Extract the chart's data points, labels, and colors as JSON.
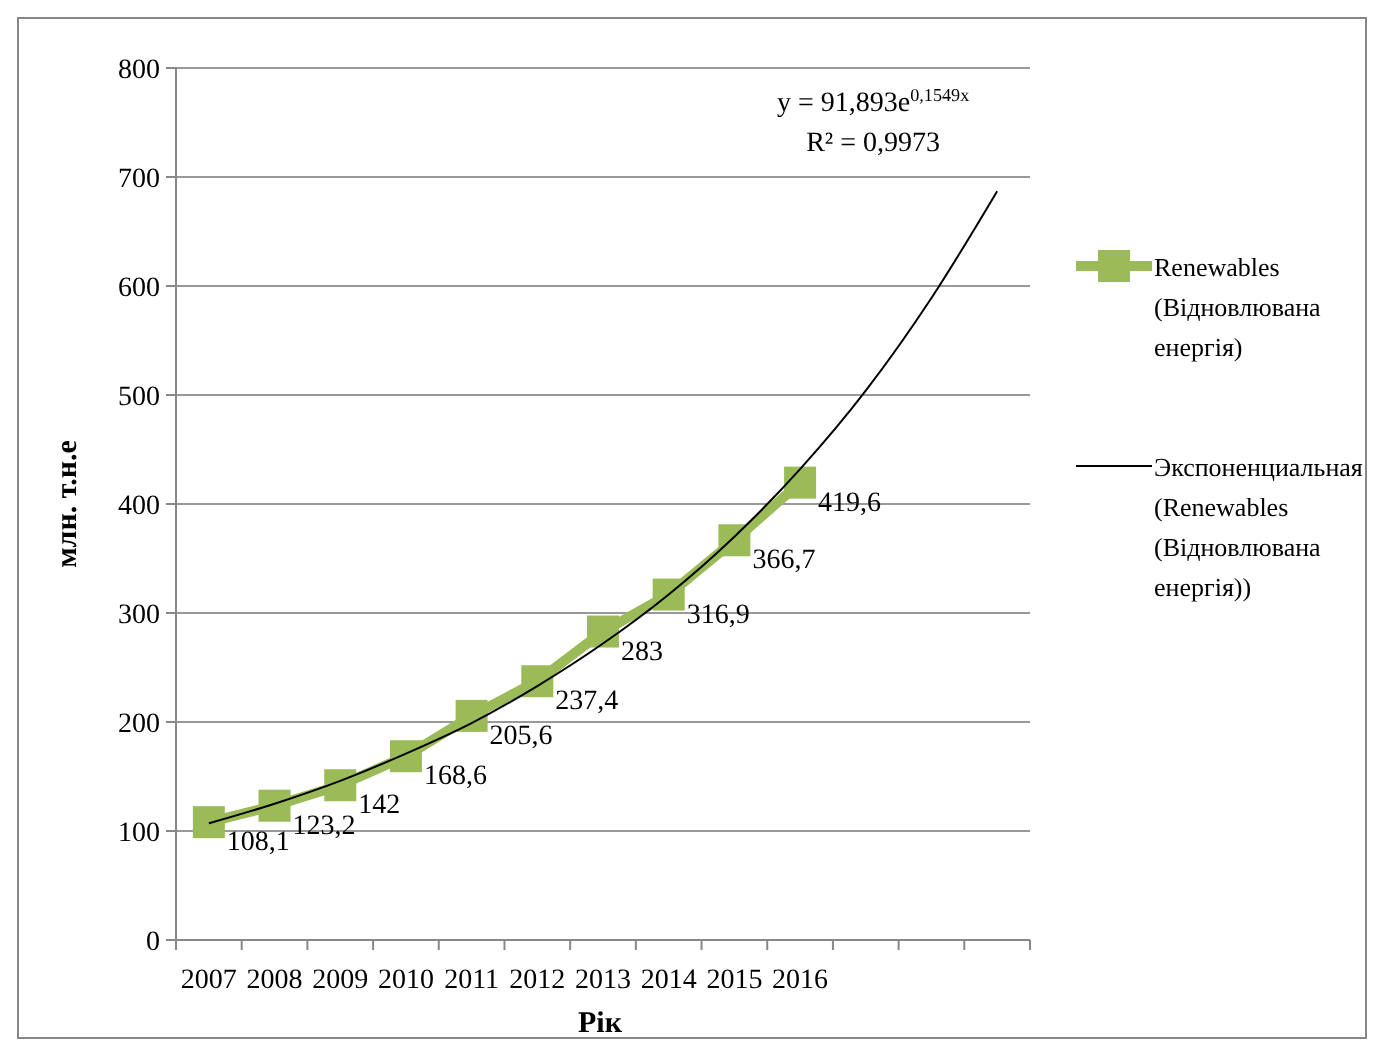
{
  "chart_data": {
    "type": "line",
    "xlabel": "Рік",
    "ylabel": "млн. т.н.е",
    "categories": [
      "2007",
      "2008",
      "2009",
      "2010",
      "2011",
      "2012",
      "2013",
      "2014",
      "2015",
      "2016",
      null,
      null,
      null
    ],
    "series": [
      {
        "name": "Renewables (Відновлювана енергія)",
        "color": "#9bbb59",
        "marker": "square",
        "values": [
          108.1,
          123.2,
          142,
          168.6,
          205.6,
          237.4,
          283,
          316.9,
          366.7,
          419.6,
          null,
          null,
          null
        ],
        "value_labels": [
          "108,1",
          "123,2",
          "142",
          "168,6",
          "205,6",
          "237,4",
          "283",
          "316,9",
          "366,7",
          "419,6",
          null,
          null,
          null
        ]
      },
      {
        "name": "Экспоненциальная (Renewables (Відновлювана енергія))",
        "color": "#000000",
        "marker": "none",
        "values": [
          107,
          125,
          146,
          171,
          199,
          233,
          272,
          317,
          370,
          432,
          504,
          589,
          687
        ]
      }
    ],
    "annotations": [
      "y = 91,893e$^{0,1549x}$",
      "R² = 0,9973"
    ],
    "ylim": [
      0,
      800
    ],
    "yticks": [
      0,
      100,
      200,
      300,
      400,
      500,
      600,
      700,
      800
    ],
    "grid": "y",
    "legend": "right"
  }
}
